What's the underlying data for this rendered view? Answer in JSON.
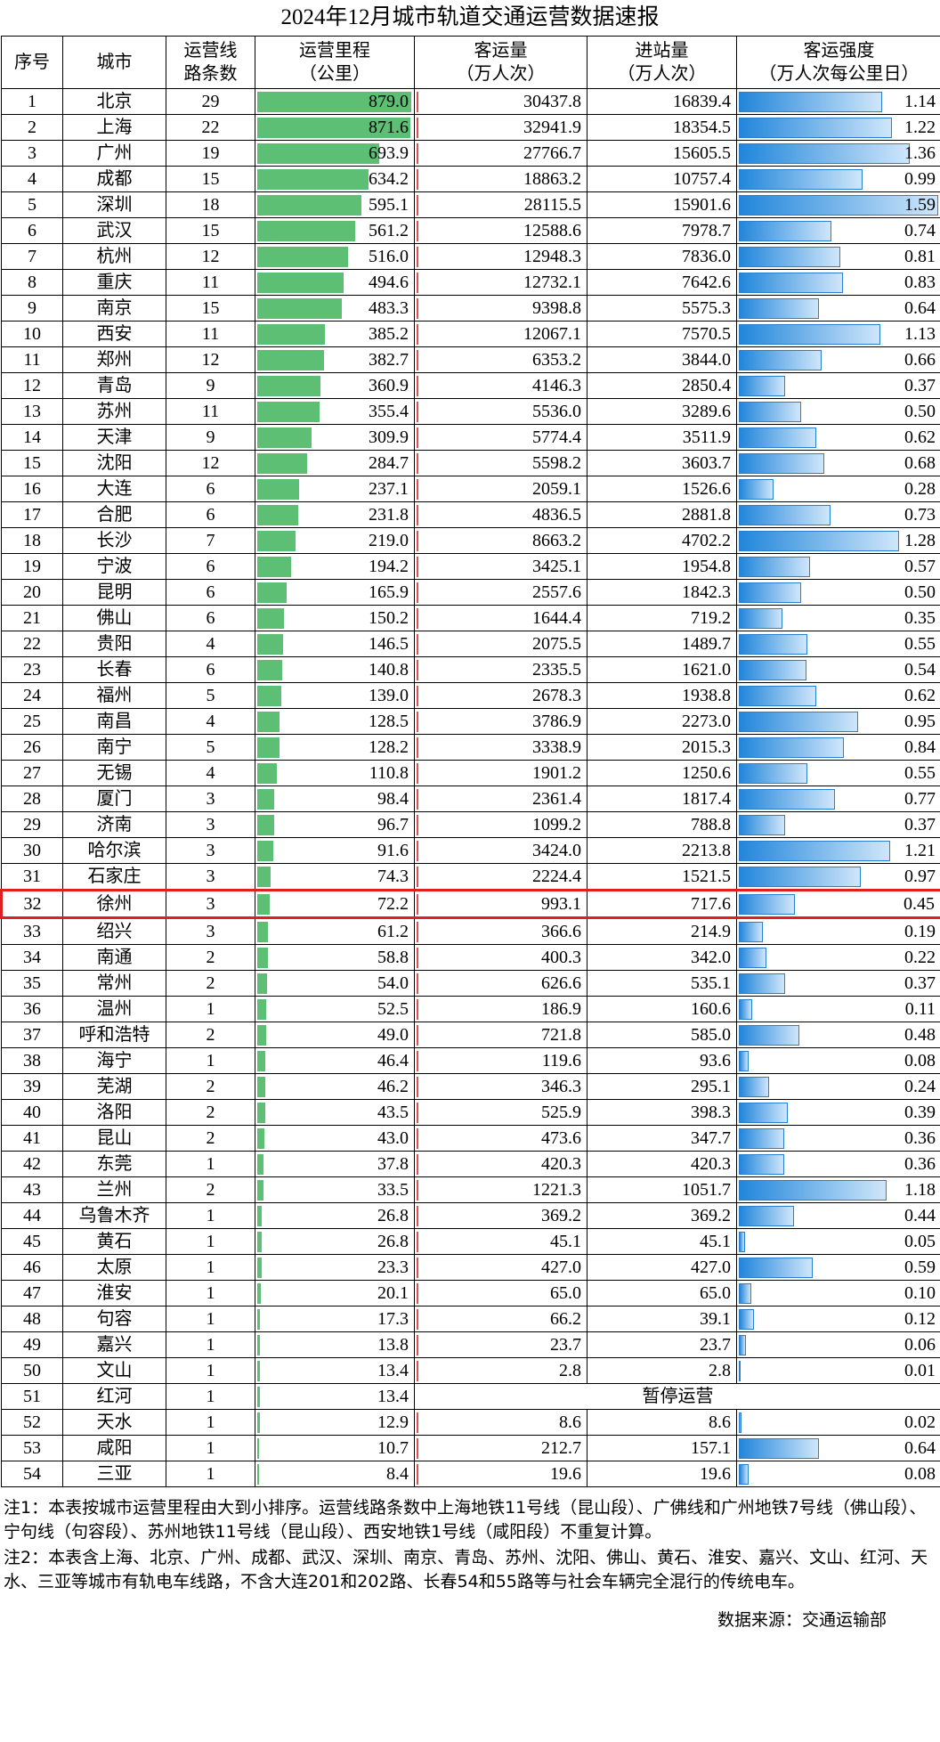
{
  "title": "2024年12月城市轨道交通运营数据速报",
  "table": {
    "header": [
      "序号",
      "城市",
      "运营线\n路条数",
      "运营里程\n（公里）",
      "客运量\n（万人次）",
      "进站量\n（万人次）",
      "客运强度\n（万人次每公里日）"
    ],
    "rows": [
      [
        "1",
        "北京",
        "29",
        "879.0",
        "30437.8",
        "16839.4",
        "1.14"
      ],
      [
        "2",
        "上海",
        "22",
        "871.6",
        "32941.9",
        "18354.5",
        "1.22"
      ],
      [
        "3",
        "广州",
        "19",
        "693.9",
        "27766.7",
        "15605.5",
        "1.36"
      ],
      [
        "4",
        "成都",
        "15",
        "634.2",
        "18863.2",
        "10757.4",
        "0.99"
      ],
      [
        "5",
        "深圳",
        "18",
        "595.1",
        "28115.5",
        "15901.6",
        "1.59"
      ],
      [
        "6",
        "武汉",
        "15",
        "561.2",
        "12588.6",
        "7978.7",
        "0.74"
      ],
      [
        "7",
        "杭州",
        "12",
        "516.0",
        "12948.3",
        "7836.0",
        "0.81"
      ],
      [
        "8",
        "重庆",
        "11",
        "494.6",
        "12732.1",
        "7642.6",
        "0.83"
      ],
      [
        "9",
        "南京",
        "15",
        "483.3",
        "9398.8",
        "5575.3",
        "0.64"
      ],
      [
        "10",
        "西安",
        "11",
        "385.2",
        "12067.1",
        "7570.5",
        "1.13"
      ],
      [
        "11",
        "郑州",
        "12",
        "382.7",
        "6353.2",
        "3844.0",
        "0.66"
      ],
      [
        "12",
        "青岛",
        "9",
        "360.9",
        "4146.3",
        "2850.4",
        "0.37"
      ],
      [
        "13",
        "苏州",
        "11",
        "355.4",
        "5536.0",
        "3289.6",
        "0.50"
      ],
      [
        "14",
        "天津",
        "9",
        "309.9",
        "5774.4",
        "3511.9",
        "0.62"
      ],
      [
        "15",
        "沈阳",
        "12",
        "284.7",
        "5598.2",
        "3603.7",
        "0.68"
      ],
      [
        "16",
        "大连",
        "6",
        "237.1",
        "2059.1",
        "1526.6",
        "0.28"
      ],
      [
        "17",
        "合肥",
        "6",
        "231.8",
        "4836.5",
        "2881.8",
        "0.73"
      ],
      [
        "18",
        "长沙",
        "7",
        "219.0",
        "8663.2",
        "4702.2",
        "1.28"
      ],
      [
        "19",
        "宁波",
        "6",
        "194.2",
        "3425.1",
        "1954.8",
        "0.57"
      ],
      [
        "20",
        "昆明",
        "6",
        "165.9",
        "2557.6",
        "1842.3",
        "0.50"
      ],
      [
        "21",
        "佛山",
        "6",
        "150.2",
        "1644.4",
        "719.2",
        "0.35"
      ],
      [
        "22",
        "贵阳",
        "4",
        "146.5",
        "2075.5",
        "1489.7",
        "0.55"
      ],
      [
        "23",
        "长春",
        "6",
        "140.8",
        "2335.5",
        "1621.0",
        "0.54"
      ],
      [
        "24",
        "福州",
        "5",
        "139.0",
        "2678.3",
        "1938.8",
        "0.62"
      ],
      [
        "25",
        "南昌",
        "4",
        "128.5",
        "3786.9",
        "2273.0",
        "0.95"
      ],
      [
        "26",
        "南宁",
        "5",
        "128.2",
        "3338.9",
        "2015.3",
        "0.84"
      ],
      [
        "27",
        "无锡",
        "4",
        "110.8",
        "1901.2",
        "1250.6",
        "0.55"
      ],
      [
        "28",
        "厦门",
        "3",
        "98.4",
        "2361.4",
        "1817.4",
        "0.77"
      ],
      [
        "29",
        "济南",
        "3",
        "96.7",
        "1099.2",
        "788.8",
        "0.37"
      ],
      [
        "30",
        "哈尔滨",
        "3",
        "91.6",
        "3424.0",
        "2213.8",
        "1.21"
      ],
      [
        "31",
        "石家庄",
        "3",
        "74.3",
        "2224.4",
        "1521.5",
        "0.97"
      ],
      [
        "32",
        "徐州",
        "3",
        "72.2",
        "993.1",
        "717.6",
        "0.45"
      ],
      [
        "33",
        "绍兴",
        "3",
        "61.2",
        "366.6",
        "214.9",
        "0.19"
      ],
      [
        "34",
        "南通",
        "2",
        "58.8",
        "400.3",
        "342.0",
        "0.22"
      ],
      [
        "35",
        "常州",
        "2",
        "54.0",
        "626.6",
        "535.1",
        "0.37"
      ],
      [
        "36",
        "温州",
        "1",
        "52.5",
        "186.9",
        "160.6",
        "0.11"
      ],
      [
        "37",
        "呼和浩特",
        "2",
        "49.0",
        "721.8",
        "585.0",
        "0.48"
      ],
      [
        "38",
        "海宁",
        "1",
        "46.4",
        "119.6",
        "93.6",
        "0.08"
      ],
      [
        "39",
        "芜湖",
        "2",
        "46.2",
        "346.3",
        "295.1",
        "0.24"
      ],
      [
        "40",
        "洛阳",
        "2",
        "43.5",
        "525.9",
        "398.3",
        "0.39"
      ],
      [
        "41",
        "昆山",
        "2",
        "43.0",
        "473.6",
        "347.7",
        "0.36"
      ],
      [
        "42",
        "东莞",
        "1",
        "37.8",
        "420.3",
        "420.3",
        "0.36"
      ],
      [
        "43",
        "兰州",
        "2",
        "33.5",
        "1221.3",
        "1051.7",
        "1.18"
      ],
      [
        "44",
        "乌鲁木齐",
        "1",
        "26.8",
        "369.2",
        "369.2",
        "0.44"
      ],
      [
        "45",
        "黄石",
        "1",
        "26.8",
        "45.1",
        "45.1",
        "0.05"
      ],
      [
        "46",
        "太原",
        "1",
        "23.3",
        "427.0",
        "427.0",
        "0.59"
      ],
      [
        "47",
        "淮安",
        "1",
        "20.1",
        "65.0",
        "65.0",
        "0.10"
      ],
      [
        "48",
        "句容",
        "1",
        "17.3",
        "66.2",
        "39.1",
        "0.12"
      ],
      [
        "49",
        "嘉兴",
        "1",
        "13.8",
        "23.7",
        "23.7",
        "0.06"
      ],
      [
        "50",
        "文山",
        "1",
        "13.4",
        "2.8",
        "2.8",
        "0.01"
      ],
      [
        "51",
        "红河",
        "1",
        "13.4",
        "暂停运营"
      ],
      [
        "52",
        "天水",
        "1",
        "12.9",
        "8.6",
        "8.6",
        "0.02"
      ],
      [
        "53",
        "咸阳",
        "1",
        "10.7",
        "212.7",
        "157.1",
        "0.64"
      ],
      [
        "54",
        "三亚",
        "1",
        "8.4",
        "19.6",
        "19.6",
        "0.08"
      ]
    ]
  },
  "notes": [
    "注1：本表按城市运营里程由大到小排序。运营线路条数中上海地铁11号线（昆山段）、广佛线和广州地铁7号线（佛山段）、宁句线（句容段）、苏州地铁11号线（昆山段）、西安地铁1号线（咸阳段）不重复计算。",
    "注2：本表含上海、北京、广州、成都、武汉、深圳、南京、青岛、苏州、沈阳、佛山、黄石、淮安、嘉兴、文山、红河、天水、三亚等城市有轨电车线路，不含大连201和202路、长春54和55路等与社会车辆完全混行的传统电车。"
  ],
  "source": "数据来源：交通运输部"
}
